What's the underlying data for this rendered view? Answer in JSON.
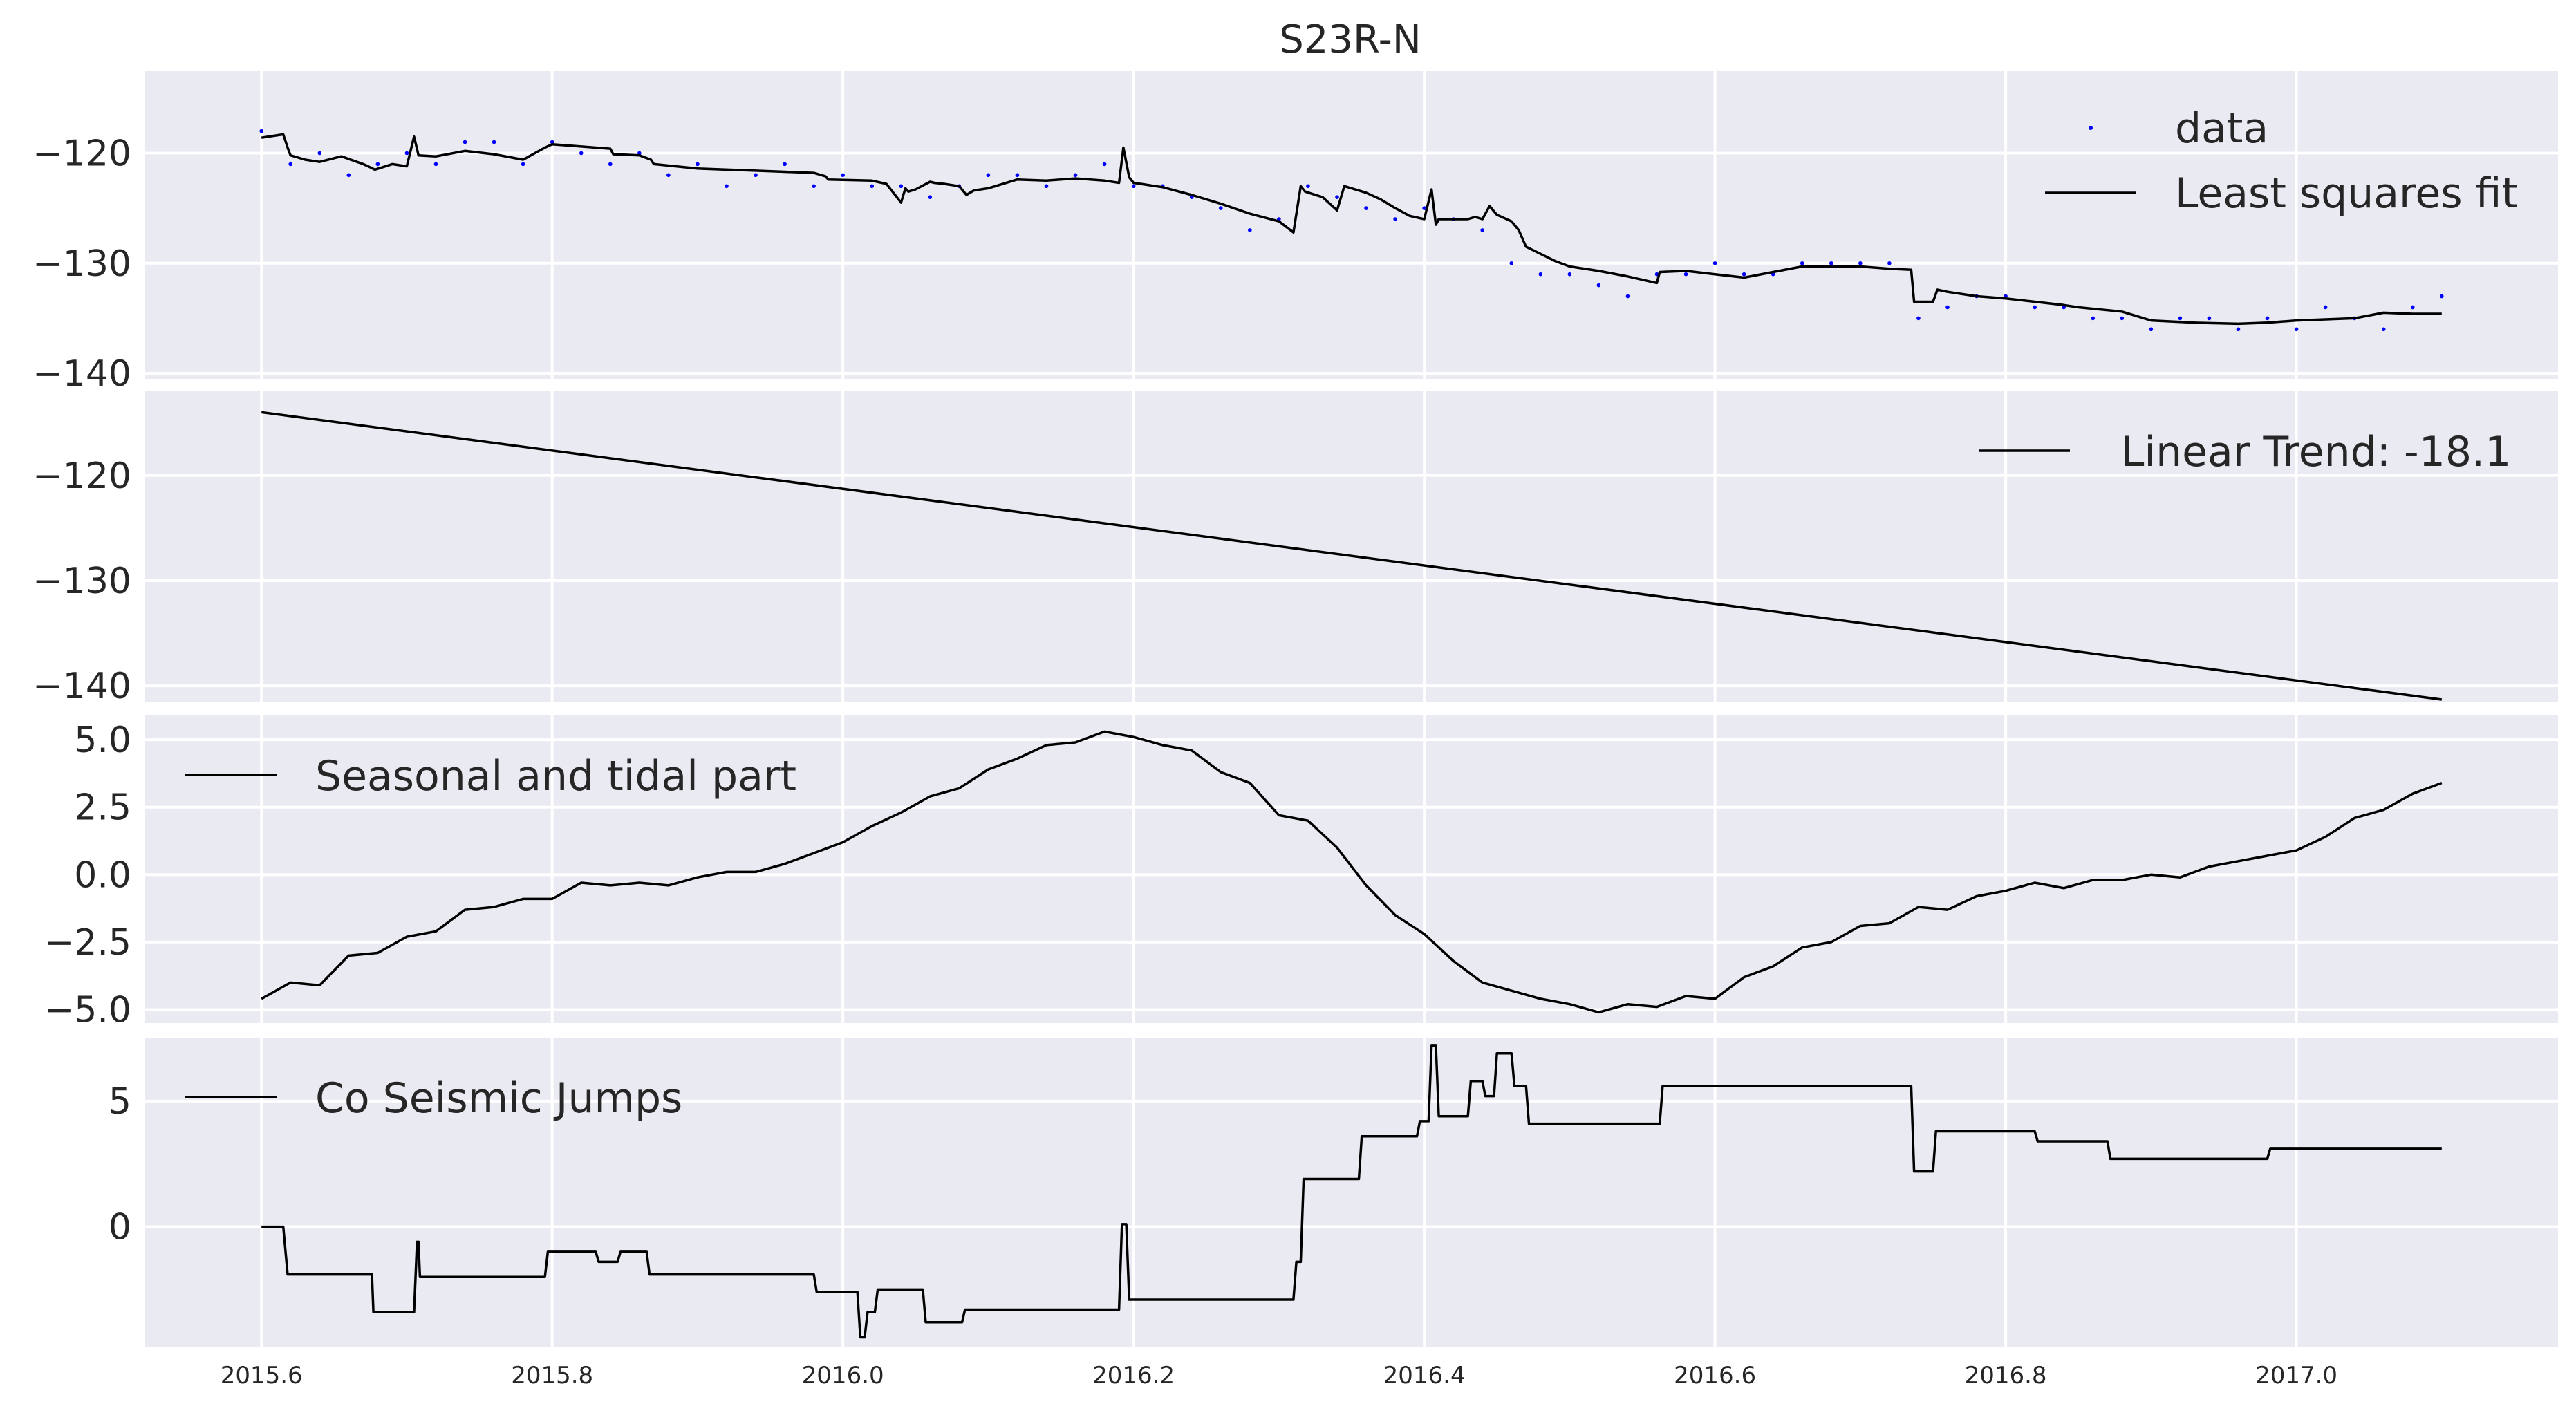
{
  "chart_data": {
    "type": "line",
    "title": "S23R-N",
    "xlim": [
      2015.52,
      2017.18
    ],
    "xticks": [
      2015.6,
      2015.8,
      2016.0,
      2016.2,
      2016.4,
      2016.6,
      2016.8,
      2017.0
    ],
    "xtick_labels": [
      "2015.6",
      "2015.8",
      "2016.0",
      "2016.2",
      "2016.4",
      "2016.6",
      "2016.8",
      "2017.0"
    ],
    "grid": true,
    "background": "#eaeaf2",
    "panels": [
      {
        "key": "data_fit",
        "ylim": [
          -140.5,
          -112.5
        ],
        "yticks": [
          -120,
          -130,
          -140
        ],
        "ytick_labels": [
          "−120",
          "−130",
          "−140"
        ],
        "legend_position": "top-right",
        "series": [
          {
            "name": "data",
            "style": "points",
            "color": "#0000ff",
            "x": [
              2015.6,
              2015.62,
              2015.64,
              2015.66,
              2015.68,
              2015.7,
              2015.72,
              2015.74,
              2015.76,
              2015.78,
              2015.8,
              2015.82,
              2015.84,
              2015.86,
              2015.88,
              2015.9,
              2015.92,
              2015.94,
              2015.96,
              2015.98,
              2016.0,
              2016.02,
              2016.04,
              2016.06,
              2016.08,
              2016.1,
              2016.12,
              2016.14,
              2016.16,
              2016.18,
              2016.2,
              2016.22,
              2016.24,
              2016.26,
              2016.28,
              2016.3,
              2016.32,
              2016.34,
              2016.36,
              2016.38,
              2016.4,
              2016.42,
              2016.44,
              2016.46,
              2016.48,
              2016.5,
              2016.52,
              2016.54,
              2016.56,
              2016.58,
              2016.6,
              2016.62,
              2016.64,
              2016.66,
              2016.68,
              2016.7,
              2016.72,
              2016.74,
              2016.76,
              2016.78,
              2016.8,
              2016.82,
              2016.84,
              2016.86,
              2016.88,
              2016.9,
              2016.92,
              2016.94,
              2016.96,
              2016.98,
              2017.0,
              2017.02,
              2017.04,
              2017.06,
              2017.08,
              2017.1
            ],
            "y": [
              -118,
              -121,
              -120,
              -122,
              -121,
              -120,
              -121,
              -119,
              -119,
              -121,
              -119,
              -120,
              -121,
              -120,
              -122,
              -121,
              -123,
              -122,
              -121,
              -123,
              -122,
              -123,
              -123,
              -124,
              -123,
              -122,
              -122,
              -123,
              -122,
              -121,
              -123,
              -123,
              -124,
              -125,
              -127,
              -126,
              -123,
              -124,
              -125,
              -126,
              -125,
              -126,
              -127,
              -130,
              -131,
              -131,
              -132,
              -133,
              -131,
              -131,
              -130,
              -131,
              -131,
              -130,
              -130,
              -130,
              -130,
              -135,
              -134,
              -133,
              -133,
              -134,
              -134,
              -135,
              -135,
              -136,
              -135,
              -135,
              -136,
              -135,
              -136,
              -134,
              -135,
              -136,
              -134,
              -133
            ]
          },
          {
            "name": "Least squares fit",
            "style": "line",
            "color": "#000000",
            "x": [
              2015.6,
              2015.615,
              2015.618,
              2015.62,
              2015.63,
              2015.64,
              2015.655,
              2015.67,
              2015.675,
              2015.678,
              2015.69,
              2015.7,
              2015.705,
              2015.708,
              2015.72,
              2015.74,
              2015.76,
              2015.78,
              2015.795,
              2015.8,
              2015.82,
              2015.84,
              2015.842,
              2015.86,
              2015.868,
              2015.87,
              2015.9,
              2015.94,
              2015.96,
              2015.98,
              2015.988,
              2015.99,
              2016.02,
              2016.03,
              2016.04,
              2016.043,
              2016.045,
              2016.05,
              2016.06,
              2016.063,
              2016.07,
              2016.08,
              2016.085,
              2016.09,
              2016.1,
              2016.12,
              2016.14,
              2016.16,
              2016.18,
              2016.19,
              2016.193,
              2016.197,
              2016.2,
              2016.22,
              2016.24,
              2016.26,
              2016.28,
              2016.3,
              2016.31,
              2016.315,
              2016.318,
              2016.33,
              2016.34,
              2016.345,
              2016.36,
              2016.37,
              2016.38,
              2016.39,
              2016.4,
              2016.405,
              2016.408,
              2016.41,
              2016.43,
              2016.435,
              2016.44,
              2016.445,
              2016.448,
              2016.45,
              2016.46,
              2016.465,
              2016.47,
              2016.49,
              2016.5,
              2016.52,
              2016.54,
              2016.56,
              2016.562,
              2016.58,
              2016.6,
              2016.62,
              2016.64,
              2016.66,
              2016.68,
              2016.7,
              2016.72,
              2016.735,
              2016.737,
              2016.75,
              2016.753,
              2016.76,
              2016.78,
              2016.8,
              2016.82,
              2016.84,
              2016.85,
              2016.88,
              2016.9,
              2016.93,
              2016.96,
              2016.98,
              2017.0,
              2017.04,
              2017.06,
              2017.08,
              2017.1
            ],
            "y": [
              -118.6,
              -118.3,
              -119.5,
              -120.2,
              -120.6,
              -120.8,
              -120.3,
              -121.0,
              -121.3,
              -121.5,
              -121.0,
              -121.2,
              -118.5,
              -120.2,
              -120.3,
              -119.8,
              -120.1,
              -120.6,
              -119.5,
              -119.2,
              -119.4,
              -119.6,
              -120.1,
              -120.2,
              -120.6,
              -121.0,
              -121.4,
              -121.6,
              -121.7,
              -121.8,
              -122.1,
              -122.4,
              -122.5,
              -122.8,
              -124.5,
              -123.2,
              -123.5,
              -123.3,
              -122.6,
              -122.7,
              -122.8,
              -123.0,
              -123.8,
              -123.4,
              -123.2,
              -122.4,
              -122.5,
              -122.3,
              -122.5,
              -122.7,
              -119.5,
              -122.2,
              -122.7,
              -123.1,
              -123.8,
              -124.6,
              -125.5,
              -126.2,
              -127.2,
              -123.0,
              -123.5,
              -124.0,
              -125.2,
              -123.0,
              -123.6,
              -124.2,
              -125.0,
              -125.7,
              -126.0,
              -123.3,
              -126.5,
              -126.0,
              -126.0,
              -125.8,
              -126.0,
              -124.8,
              -125.3,
              -125.6,
              -126.2,
              -127.0,
              -128.5,
              -129.8,
              -130.3,
              -130.7,
              -131.2,
              -131.8,
              -130.8,
              -130.7,
              -131.0,
              -131.3,
              -130.8,
              -130.3,
              -130.3,
              -130.3,
              -130.5,
              -130.6,
              -133.5,
              -133.5,
              -132.4,
              -132.6,
              -133.0,
              -133.2,
              -133.5,
              -133.8,
              -134.0,
              -134.4,
              -135.2,
              -135.4,
              -135.5,
              -135.4,
              -135.2,
              -135.0,
              -134.5,
              -134.6,
              -134.6
            ]
          }
        ]
      },
      {
        "key": "trend",
        "ylim": [
          -141.5,
          -112
        ],
        "yticks": [
          -120,
          -130,
          -140
        ],
        "ytick_labels": [
          "−120",
          "−130",
          "−140"
        ],
        "legend_position": "top-right",
        "series": [
          {
            "name": "Linear Trend: -18.1",
            "style": "line",
            "color": "#000000",
            "x": [
              2015.6,
              2017.1
            ],
            "y": [
              -114.0,
              -141.3
            ]
          }
        ]
      },
      {
        "key": "seasonal",
        "ylim": [
          -5.5,
          5.9
        ],
        "yticks": [
          5.0,
          2.5,
          0.0,
          -2.5,
          -5.0
        ],
        "ytick_labels": [
          "5.0",
          "2.5",
          "0.0",
          "−2.5",
          "−5.0"
        ],
        "legend_position": "top-left",
        "series": [
          {
            "name": "Seasonal and tidal part",
            "style": "line",
            "color": "#000000",
            "x": [
              2015.6,
              2015.62,
              2015.64,
              2015.66,
              2015.68,
              2015.7,
              2015.72,
              2015.74,
              2015.76,
              2015.78,
              2015.8,
              2015.82,
              2015.84,
              2015.86,
              2015.88,
              2015.9,
              2015.92,
              2015.94,
              2015.96,
              2015.98,
              2016.0,
              2016.02,
              2016.04,
              2016.06,
              2016.08,
              2016.1,
              2016.12,
              2016.14,
              2016.16,
              2016.18,
              2016.2,
              2016.22,
              2016.24,
              2016.26,
              2016.28,
              2016.3,
              2016.32,
              2016.34,
              2016.36,
              2016.38,
              2016.4,
              2016.42,
              2016.44,
              2016.46,
              2016.48,
              2016.5,
              2016.52,
              2016.54,
              2016.56,
              2016.58,
              2016.6,
              2016.62,
              2016.64,
              2016.66,
              2016.68,
              2016.7,
              2016.72,
              2016.74,
              2016.76,
              2016.78,
              2016.8,
              2016.82,
              2016.84,
              2016.86,
              2016.88,
              2016.9,
              2016.92,
              2016.94,
              2016.96,
              2016.98,
              2017.0,
              2017.02,
              2017.04,
              2017.06,
              2017.08,
              2017.1
            ],
            "y": [
              -4.6,
              -4.0,
              -4.1,
              -3.0,
              -2.9,
              -2.3,
              -2.1,
              -1.3,
              -1.2,
              -0.9,
              -0.9,
              -0.3,
              -0.4,
              -0.3,
              -0.4,
              -0.1,
              0.1,
              0.1,
              0.4,
              0.8,
              1.2,
              1.8,
              2.3,
              2.9,
              3.2,
              3.9,
              4.3,
              4.8,
              4.9,
              5.3,
              5.1,
              4.8,
              4.6,
              3.8,
              3.4,
              2.2,
              2.0,
              1.0,
              -0.4,
              -1.5,
              -2.2,
              -3.2,
              -4.0,
              -4.3,
              -4.6,
              -4.8,
              -5.1,
              -4.8,
              -4.9,
              -4.5,
              -4.6,
              -3.8,
              -3.4,
              -2.7,
              -2.5,
              -1.9,
              -1.8,
              -1.2,
              -1.3,
              -0.8,
              -0.6,
              -0.3,
              -0.5,
              -0.2,
              -0.2,
              0.0,
              -0.1,
              0.3,
              0.5,
              0.7,
              0.9,
              1.4,
              2.1,
              2.4,
              3.0,
              3.4
            ]
          }
        ]
      },
      {
        "key": "jumps",
        "ylim": [
          -4.8,
          7.5
        ],
        "yticks": [
          5,
          0
        ],
        "ytick_labels": [
          "5",
          "0"
        ],
        "legend_position": "top-left",
        "series": [
          {
            "name": "Co Seismic Jumps",
            "style": "line",
            "color": "#000000",
            "x": [
              2015.6,
              2015.615,
              2015.618,
              2015.676,
              2015.677,
              2015.705,
              2015.707,
              2015.708,
              2015.709,
              2015.71,
              2015.795,
              2015.797,
              2015.83,
              2015.832,
              2015.845,
              2015.847,
              2015.865,
              2015.867,
              2015.93,
              2015.932,
              2015.98,
              2015.982,
              2016.01,
              2016.012,
              2016.015,
              2016.017,
              2016.022,
              2016.024,
              2016.03,
              2016.032,
              2016.055,
              2016.057,
              2016.082,
              2016.084,
              2016.19,
              2016.192,
              2016.195,
              2016.197,
              2016.31,
              2016.312,
              2016.315,
              2016.317,
              2016.355,
              2016.357,
              2016.395,
              2016.397,
              2016.403,
              2016.405,
              2016.408,
              2016.41,
              2016.43,
              2016.432,
              2016.44,
              2016.442,
              2016.448,
              2016.45,
              2016.46,
              2016.462,
              2016.47,
              2016.472,
              2016.562,
              2016.564,
              2016.735,
              2016.737,
              2016.75,
              2016.752,
              2016.82,
              2016.822,
              2016.87,
              2016.872,
              2016.98,
              2016.982,
              2017.1
            ],
            "y": [
              0.0,
              0.0,
              -1.9,
              -1.9,
              -3.4,
              -3.4,
              -0.6,
              -0.6,
              -2.0,
              -2.0,
              -2.0,
              -1.0,
              -1.0,
              -1.4,
              -1.4,
              -1.0,
              -1.0,
              -1.9,
              -1.9,
              -1.9,
              -1.9,
              -2.6,
              -2.6,
              -4.4,
              -4.4,
              -3.4,
              -3.4,
              -2.5,
              -2.5,
              -2.5,
              -2.5,
              -3.8,
              -3.8,
              -3.3,
              -3.3,
              0.1,
              0.1,
              -2.9,
              -2.9,
              -1.4,
              -1.4,
              1.9,
              1.9,
              3.6,
              3.6,
              4.2,
              4.2,
              7.2,
              7.2,
              4.4,
              4.4,
              5.8,
              5.8,
              5.2,
              5.2,
              6.9,
              6.9,
              5.6,
              5.6,
              4.1,
              4.1,
              5.6,
              5.6,
              2.2,
              2.2,
              3.8,
              3.8,
              3.4,
              3.4,
              2.7,
              2.7,
              3.1,
              3.1
            ]
          }
        ]
      }
    ]
  }
}
